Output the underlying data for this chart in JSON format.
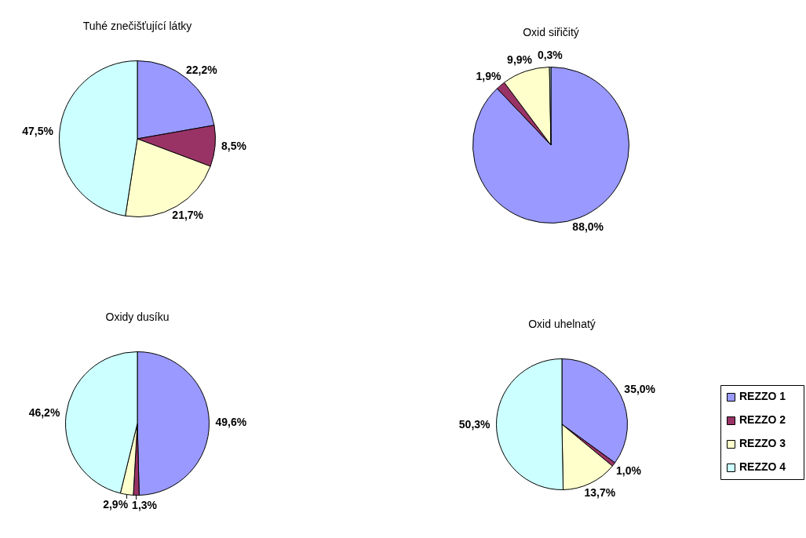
{
  "chart_data": [
    {
      "type": "pie",
      "title": "Tuhé znečišťující látky",
      "categories": [
        null,
        null,
        null,
        null
      ],
      "values": [
        22.2,
        8.5,
        21.7,
        47.5
      ],
      "colors": [
        "#9999ff",
        "#993366",
        "#ffffcc",
        "#ccffff"
      ],
      "value_labels": [
        "22,2%",
        "8,5%",
        "21,7%",
        "47,5%"
      ]
    },
    {
      "type": "pie",
      "title": "Oxid siřičitý",
      "categories": [
        null,
        null,
        null,
        null
      ],
      "values": [
        88.0,
        1.9,
        9.9,
        0.3
      ],
      "colors": [
        "#9999ff",
        "#993366",
        "#ffffcc",
        "#ccffff"
      ],
      "value_labels": [
        "88,0%",
        "1,9%",
        "9,9%",
        "0,3%"
      ]
    },
    {
      "type": "pie",
      "title": "Oxidy dusíku",
      "categories": [
        null,
        null,
        null,
        null
      ],
      "values": [
        49.6,
        1.3,
        2.9,
        46.2
      ],
      "colors": [
        "#9999ff",
        "#993366",
        "#ffffcc",
        "#ccffff"
      ],
      "value_labels": [
        "49,6%",
        "1,3%",
        "2,9%",
        "46,2%"
      ]
    },
    {
      "type": "pie",
      "title": "Oxid uhelnatý",
      "categories": [
        "REZZO 1",
        "REZZO 2",
        "REZZO 3",
        "REZZO 4"
      ],
      "values": [
        35.0,
        1.0,
        13.7,
        50.3
      ],
      "colors": [
        "#9999ff",
        "#993366",
        "#ffffcc",
        "#ccffff"
      ],
      "value_labels": [
        "35,0%",
        "1,0%",
        "13,7%",
        "50,3%"
      ],
      "legend": "right"
    }
  ]
}
